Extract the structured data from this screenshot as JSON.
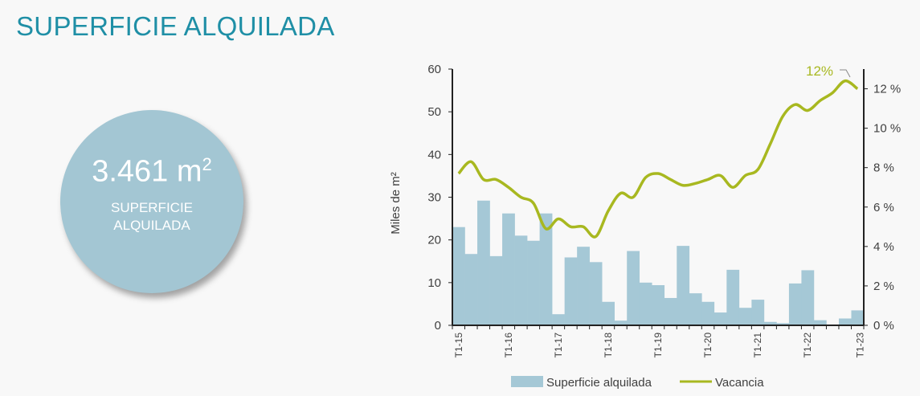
{
  "title": "SUPERFICIE ALQUILADA",
  "kpi": {
    "value": "3.461 m",
    "sup": "2",
    "label_line1": "SUPERFICIE",
    "label_line2": "ALQUILADA"
  },
  "colors": {
    "bars": "#a5c8d6",
    "line": "#a8b820",
    "title": "#1f8fa6"
  },
  "chart_data": {
    "type": "bar+line",
    "ylabel": "Miles de m²",
    "ylim": [
      0,
      60
    ],
    "y2lim": [
      0,
      13
    ],
    "yticks": [
      "0",
      "10",
      "20",
      "30",
      "40",
      "50",
      "60"
    ],
    "y2ticks": [
      "0 %",
      "2 %",
      "4 %",
      "6 %",
      "8 %",
      "10 %",
      "12 %"
    ],
    "xtick_labels": [
      "T1-15",
      "T1-16",
      "T1-17",
      "T1-18",
      "T1-19",
      "T1-20",
      "T1-21",
      "T1-22",
      "T1-23"
    ],
    "annotation": "12%",
    "series": [
      {
        "name": "Superficie alquilada",
        "type": "bar",
        "values": [
          23,
          16.7,
          29.2,
          16.2,
          26.2,
          21,
          19.8,
          26.2,
          2.6,
          15.9,
          18.4,
          14.8,
          5.5,
          1.1,
          17.4,
          10,
          9.4,
          6.4,
          18.6,
          7.5,
          5.5,
          3,
          13,
          4.1,
          6,
          0.8,
          0.5,
          9.8,
          12.9,
          1.2,
          0,
          1.6,
          3.5
        ]
      },
      {
        "name": "Vacancia",
        "type": "line",
        "axis": "right",
        "values": [
          7.7,
          8.3,
          7.4,
          7.4,
          7.0,
          6.5,
          6.2,
          4.9,
          5.4,
          5.0,
          5.0,
          4.5,
          5.8,
          6.7,
          6.5,
          7.5,
          7.7,
          7.4,
          7.1,
          7.2,
          7.4,
          7.6,
          7.0,
          7.6,
          7.9,
          9.2,
          10.6,
          11.2,
          10.9,
          11.4,
          11.8,
          12.4,
          12.0
        ]
      }
    ]
  }
}
